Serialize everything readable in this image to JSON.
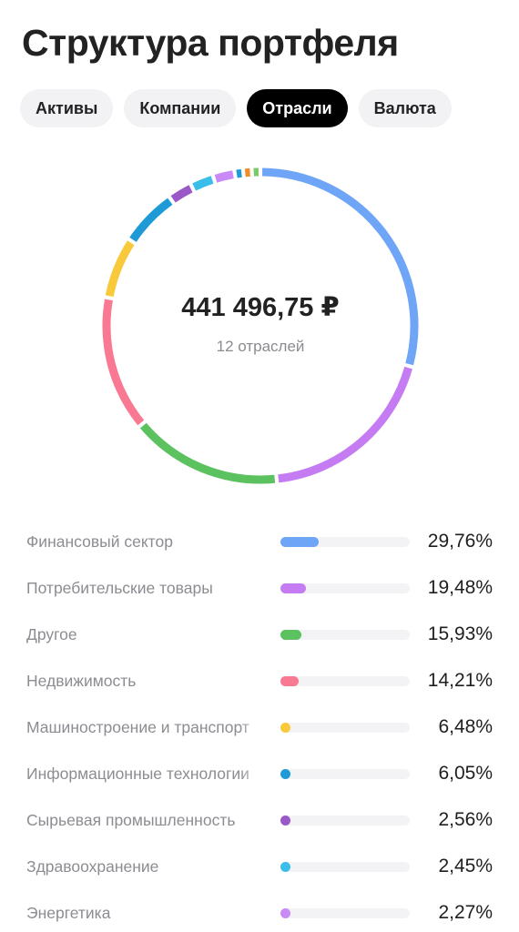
{
  "header": {
    "title": "Структура портфеля"
  },
  "tabs": [
    {
      "label": "Активы",
      "active": false
    },
    {
      "label": "Компании",
      "active": false
    },
    {
      "label": "Отрасли",
      "active": true
    },
    {
      "label": "Валюта",
      "active": false
    }
  ],
  "donut": {
    "total": "441 496,75 ₽",
    "count_label": "12 отраслей"
  },
  "sectors": [
    {
      "name": "Финансовый сектор",
      "percent": "29,76%",
      "value": 29.76,
      "color": "#6FA5F7"
    },
    {
      "name": "Потребительские товары",
      "percent": "19,48%",
      "value": 19.48,
      "color": "#C57BF2"
    },
    {
      "name": "Другое",
      "percent": "15,93%",
      "value": 15.93,
      "color": "#5BC25F"
    },
    {
      "name": "Недвижимость",
      "percent": "14,21%",
      "value": 14.21,
      "color": "#F97892"
    },
    {
      "name": "Машиностроение и транспорт",
      "percent": "6,48%",
      "value": 6.48,
      "color": "#F8C93A"
    },
    {
      "name": "Информационные технологии",
      "percent": "6,05%",
      "value": 6.05,
      "color": "#1E9AD6"
    },
    {
      "name": "Сырьевая промышленность",
      "percent": "2,56%",
      "value": 2.56,
      "color": "#9B59C8"
    },
    {
      "name": "Здравоохранение",
      "percent": "2,45%",
      "value": 2.45,
      "color": "#3BBDEB"
    },
    {
      "name": "Энергетика",
      "percent": "2,27%",
      "value": 2.27,
      "color": "#C98AF5"
    }
  ],
  "hidden_segments": [
    {
      "value": 0.9,
      "color": "#1E9AD6"
    },
    {
      "value": 0.9,
      "color": "#F28C28"
    },
    {
      "value": 0.9,
      "color": "#7CC96A"
    }
  ]
}
